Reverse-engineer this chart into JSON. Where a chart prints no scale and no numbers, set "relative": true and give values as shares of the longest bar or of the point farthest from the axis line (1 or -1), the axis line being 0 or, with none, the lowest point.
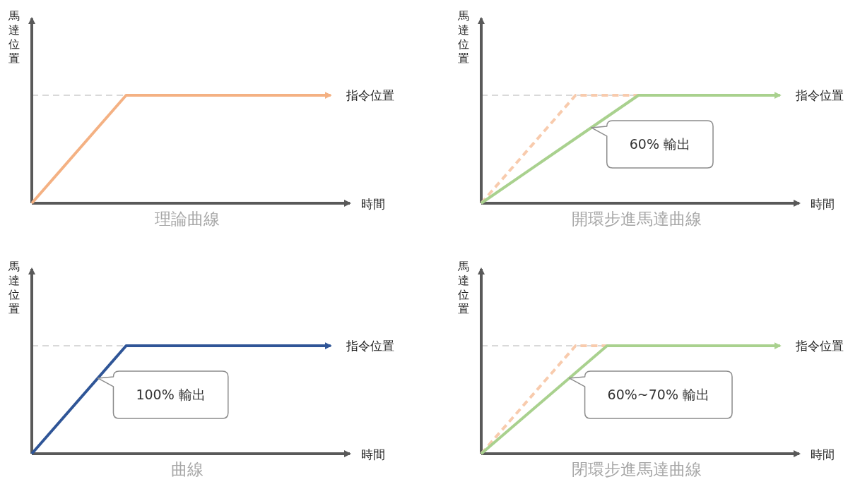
{
  "chart_data": [
    {
      "type": "line",
      "title": "理論曲線",
      "xlabel": "時間",
      "ylabel": "馬達位置",
      "relative": true,
      "categories": [
        null,
        null,
        null,
        null,
        null,
        null,
        null,
        null,
        null,
        null,
        null,
        null,
        null,
        null,
        null,
        null,
        null,
        null,
        null,
        null
      ],
      "series": [
        {
          "name": "指令位置",
          "color": "#f4b183",
          "values": [
            0,
            null,
            null,
            null,
            null,
            null,
            1,
            null,
            null,
            null,
            null,
            null,
            null,
            null,
            null,
            null,
            null,
            null,
            null,
            1
          ]
        }
      ],
      "ref_lines": [
        {
          "axis": "y",
          "value": 1,
          "color": "#d9d9d9",
          "line_style": "dashed"
        }
      ]
    },
    {
      "type": "line",
      "title": "開環步進馬達曲線",
      "xlabel": "時間",
      "ylabel": "馬達位置",
      "relative": true,
      "categories": [
        null,
        null,
        null,
        null,
        null,
        null,
        null,
        null,
        null,
        null,
        null,
        null,
        null,
        null,
        null,
        null,
        null,
        null,
        null,
        null
      ],
      "series": [
        {
          "color": "#f8cbad",
          "line_style": "dashed",
          "values": [
            0,
            null,
            null,
            null,
            null,
            null,
            1,
            null,
            null,
            null,
            1,
            null,
            null,
            null,
            null,
            null,
            null,
            null,
            null,
            null
          ]
        },
        {
          "name": "指令位置",
          "color": "#a9d18e",
          "values": [
            0,
            null,
            null,
            null,
            null,
            null,
            null,
            null,
            null,
            null,
            1,
            null,
            null,
            null,
            null,
            null,
            null,
            null,
            null,
            1
          ]
        }
      ],
      "ref_lines": [
        {
          "axis": "y",
          "value": 1,
          "color": "#d9d9d9",
          "line_style": "dashed"
        }
      ],
      "annotations": [
        "60% 輸出"
      ]
    },
    {
      "type": "line",
      "title": "曲線",
      "xlabel": "時間",
      "ylabel": "馬達位置",
      "relative": true,
      "categories": [
        null,
        null,
        null,
        null,
        null,
        null,
        null,
        null,
        null,
        null,
        null,
        null,
        null,
        null,
        null,
        null,
        null,
        null,
        null,
        null
      ],
      "series": [
        {
          "name": "指令位置",
          "color": "#2f5597",
          "values": [
            0,
            null,
            null,
            null,
            null,
            null,
            1,
            null,
            null,
            null,
            null,
            null,
            null,
            null,
            null,
            null,
            null,
            null,
            null,
            1
          ]
        }
      ],
      "ref_lines": [
        {
          "axis": "y",
          "value": 1,
          "color": "#d9d9d9",
          "line_style": "dashed"
        }
      ],
      "annotations": [
        "100% 輸出"
      ]
    },
    {
      "type": "line",
      "title": "閉環步進馬達曲線",
      "xlabel": "時間",
      "ylabel": "馬達位置",
      "relative": true,
      "categories": [
        null,
        null,
        null,
        null,
        null,
        null,
        null,
        null,
        null,
        null,
        null,
        null,
        null,
        null,
        null,
        null,
        null,
        null,
        null,
        null
      ],
      "series": [
        {
          "color": "#f8cbad",
          "line_style": "dashed",
          "values": [
            0,
            null,
            null,
            null,
            null,
            null,
            1,
            null,
            1,
            null,
            null,
            null,
            null,
            null,
            null,
            null,
            null,
            null,
            null,
            null
          ]
        },
        {
          "name": "指令位置",
          "color": "#a9d18e",
          "values": [
            0,
            null,
            null,
            null,
            null,
            null,
            null,
            null,
            1,
            null,
            null,
            null,
            null,
            null,
            null,
            null,
            null,
            null,
            null,
            1
          ]
        }
      ],
      "ref_lines": [
        {
          "axis": "y",
          "value": 1,
          "color": "#d9d9d9",
          "line_style": "dashed"
        }
      ],
      "annotations": [
        "60%~70% 輸出"
      ]
    }
  ]
}
